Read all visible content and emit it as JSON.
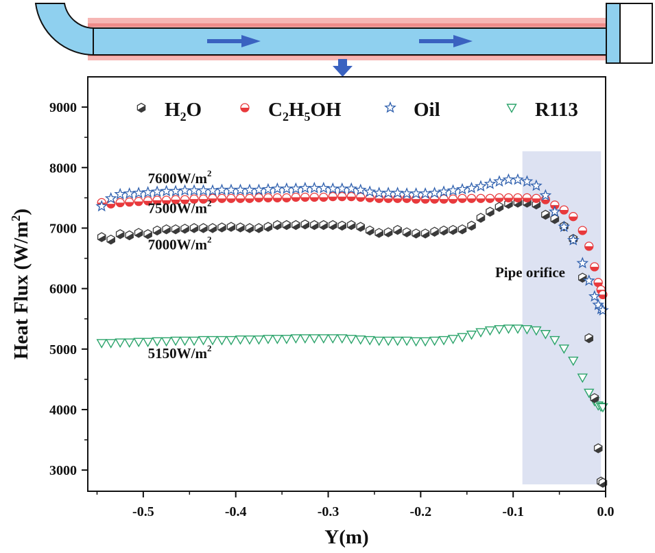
{
  "chart_data": {
    "type": "scatter",
    "title": "",
    "xlabel": "Y(m)",
    "ylabel": {
      "main": "Heat Flux (W/m",
      "sup": "2",
      "end": ")"
    },
    "xlim": [
      -0.56,
      0.0
    ],
    "ylim": [
      2650,
      9500
    ],
    "x_ticks": [
      -0.5,
      -0.4,
      -0.3,
      -0.2,
      -0.1,
      0.0
    ],
    "x_tick_labels": [
      "-0.5",
      "-0.4",
      "-0.3",
      "-0.2",
      "-0.1",
      "0.0"
    ],
    "y_ticks": [
      3000,
      4000,
      5000,
      6000,
      7000,
      8000,
      9000
    ],
    "y_tick_labels": [
      "3000",
      "4000",
      "5000",
      "6000",
      "7000",
      "8000",
      "9000"
    ],
    "grid": false,
    "legend_position": "top",
    "legend": [
      {
        "key": "h2o",
        "parts": [
          [
            "H",
            ""
          ],
          [
            "2",
            "sub"
          ],
          [
            "O",
            ""
          ]
        ]
      },
      {
        "key": "c2h5oh",
        "parts": [
          [
            "C",
            ""
          ],
          [
            "2",
            "sub"
          ],
          [
            "H",
            ""
          ],
          [
            "5",
            "sub"
          ],
          [
            "OH",
            ""
          ]
        ]
      },
      {
        "key": "oil",
        "parts": [
          [
            "Oil",
            ""
          ]
        ]
      },
      {
        "key": "r113",
        "parts": [
          [
            "R113",
            ""
          ]
        ]
      }
    ],
    "shaded_region": {
      "x": [
        -0.09,
        -0.005
      ],
      "label": "Pipe orifice",
      "color": "#dde2f2"
    },
    "annotations": [
      {
        "key": "oil",
        "parts": [
          [
            "7600W/m",
            ""
          ],
          [
            "2",
            "sup"
          ]
        ],
        "x": -0.495,
        "y": 7740
      },
      {
        "key": "c2h5oh",
        "parts": [
          [
            "7500W/m",
            ""
          ],
          [
            "2",
            "sup"
          ]
        ],
        "x": -0.495,
        "y": 7250
      },
      {
        "key": "h2o",
        "parts": [
          [
            "7000W/m",
            ""
          ],
          [
            "2",
            "sup"
          ]
        ],
        "x": -0.495,
        "y": 6650
      },
      {
        "key": "r113",
        "parts": [
          [
            "5150W/m",
            ""
          ],
          [
            "2",
            "sup"
          ]
        ],
        "x": -0.495,
        "y": 4850
      }
    ],
    "series": [
      {
        "key": "h2o",
        "name": "H2O",
        "marker": "hexagon",
        "color": "#3a3a3a",
        "x": [
          -0.545,
          -0.535,
          -0.525,
          -0.515,
          -0.505,
          -0.495,
          -0.485,
          -0.475,
          -0.465,
          -0.455,
          -0.445,
          -0.435,
          -0.425,
          -0.415,
          -0.405,
          -0.395,
          -0.385,
          -0.375,
          -0.365,
          -0.355,
          -0.345,
          -0.335,
          -0.325,
          -0.315,
          -0.305,
          -0.295,
          -0.285,
          -0.275,
          -0.265,
          -0.255,
          -0.245,
          -0.235,
          -0.225,
          -0.215,
          -0.205,
          -0.195,
          -0.185,
          -0.175,
          -0.165,
          -0.155,
          -0.145,
          -0.135,
          -0.125,
          -0.115,
          -0.105,
          -0.095,
          -0.085,
          -0.075,
          -0.065,
          -0.055,
          -0.045,
          -0.035,
          -0.025,
          -0.018,
          -0.012,
          -0.008,
          -0.005,
          -0.003
        ],
        "y": [
          6850,
          6810,
          6900,
          6880,
          6920,
          6900,
          6960,
          6980,
          6980,
          6990,
          7000,
          7000,
          7000,
          7010,
          7020,
          7010,
          7000,
          7000,
          7020,
          7050,
          7050,
          7050,
          7060,
          7050,
          7050,
          7050,
          7040,
          7050,
          7020,
          6960,
          6920,
          6930,
          6970,
          6930,
          6910,
          6910,
          6940,
          6960,
          6970,
          6980,
          7040,
          7170,
          7270,
          7350,
          7400,
          7420,
          7420,
          7390,
          7220,
          7150,
          7030,
          6820,
          6180,
          5180,
          4190,
          3360,
          2810,
          2790
        ]
      },
      {
        "key": "c2h5oh",
        "name": "C2H5OH",
        "marker": "half-circle",
        "color": "#e8393c",
        "x": [
          -0.545,
          -0.535,
          -0.525,
          -0.515,
          -0.505,
          -0.495,
          -0.485,
          -0.475,
          -0.465,
          -0.455,
          -0.445,
          -0.435,
          -0.425,
          -0.415,
          -0.405,
          -0.395,
          -0.385,
          -0.375,
          -0.365,
          -0.355,
          -0.345,
          -0.335,
          -0.325,
          -0.315,
          -0.305,
          -0.295,
          -0.285,
          -0.275,
          -0.265,
          -0.255,
          -0.245,
          -0.235,
          -0.225,
          -0.215,
          -0.205,
          -0.195,
          -0.185,
          -0.175,
          -0.165,
          -0.155,
          -0.145,
          -0.135,
          -0.125,
          -0.115,
          -0.105,
          -0.095,
          -0.085,
          -0.075,
          -0.065,
          -0.055,
          -0.045,
          -0.035,
          -0.025,
          -0.018,
          -0.012,
          -0.008,
          -0.005,
          -0.003
        ],
        "y": [
          7420,
          7400,
          7420,
          7430,
          7440,
          7450,
          7460,
          7460,
          7470,
          7470,
          7480,
          7480,
          7490,
          7490,
          7490,
          7490,
          7490,
          7500,
          7500,
          7500,
          7500,
          7510,
          7510,
          7510,
          7510,
          7520,
          7520,
          7520,
          7510,
          7500,
          7490,
          7490,
          7490,
          7490,
          7480,
          7480,
          7480,
          7480,
          7480,
          7490,
          7490,
          7490,
          7490,
          7500,
          7500,
          7500,
          7500,
          7490,
          7470,
          7380,
          7300,
          7190,
          6960,
          6700,
          6360,
          6100,
          5980,
          5900
        ]
      },
      {
        "key": "oil",
        "name": "Oil",
        "marker": "star",
        "color": "#2e5fad",
        "x": [
          -0.545,
          -0.535,
          -0.525,
          -0.515,
          -0.505,
          -0.495,
          -0.485,
          -0.475,
          -0.465,
          -0.455,
          -0.445,
          -0.435,
          -0.425,
          -0.415,
          -0.405,
          -0.395,
          -0.385,
          -0.375,
          -0.365,
          -0.355,
          -0.345,
          -0.335,
          -0.325,
          -0.315,
          -0.305,
          -0.295,
          -0.285,
          -0.275,
          -0.265,
          -0.255,
          -0.245,
          -0.235,
          -0.225,
          -0.215,
          -0.205,
          -0.195,
          -0.185,
          -0.175,
          -0.165,
          -0.155,
          -0.145,
          -0.135,
          -0.125,
          -0.115,
          -0.105,
          -0.095,
          -0.085,
          -0.075,
          -0.065,
          -0.055,
          -0.045,
          -0.035,
          -0.025,
          -0.018,
          -0.012,
          -0.008,
          -0.005,
          -0.003
        ],
        "y": [
          7360,
          7490,
          7560,
          7570,
          7580,
          7590,
          7600,
          7610,
          7610,
          7620,
          7620,
          7620,
          7620,
          7630,
          7630,
          7630,
          7630,
          7630,
          7640,
          7650,
          7650,
          7650,
          7660,
          7660,
          7660,
          7650,
          7650,
          7650,
          7630,
          7600,
          7580,
          7580,
          7580,
          7570,
          7570,
          7570,
          7580,
          7600,
          7620,
          7640,
          7660,
          7690,
          7730,
          7770,
          7800,
          7800,
          7770,
          7700,
          7540,
          7270,
          7020,
          6800,
          6420,
          6130,
          5870,
          5730,
          5660,
          5640
        ]
      },
      {
        "key": "r113",
        "name": "R113",
        "marker": "triangle-down",
        "color": "#2aa36a",
        "x": [
          -0.545,
          -0.535,
          -0.525,
          -0.515,
          -0.505,
          -0.495,
          -0.485,
          -0.475,
          -0.465,
          -0.455,
          -0.445,
          -0.435,
          -0.425,
          -0.415,
          -0.405,
          -0.395,
          -0.385,
          -0.375,
          -0.365,
          -0.355,
          -0.345,
          -0.335,
          -0.325,
          -0.315,
          -0.305,
          -0.295,
          -0.285,
          -0.275,
          -0.265,
          -0.255,
          -0.245,
          -0.235,
          -0.225,
          -0.215,
          -0.205,
          -0.195,
          -0.185,
          -0.175,
          -0.165,
          -0.155,
          -0.145,
          -0.135,
          -0.125,
          -0.115,
          -0.105,
          -0.095,
          -0.085,
          -0.075,
          -0.065,
          -0.055,
          -0.045,
          -0.035,
          -0.025,
          -0.018,
          -0.012,
          -0.008,
          -0.005,
          -0.003
        ],
        "y": [
          5100,
          5100,
          5110,
          5110,
          5120,
          5120,
          5130,
          5130,
          5140,
          5140,
          5140,
          5150,
          5150,
          5150,
          5150,
          5160,
          5160,
          5160,
          5170,
          5170,
          5170,
          5180,
          5180,
          5180,
          5180,
          5180,
          5180,
          5170,
          5160,
          5150,
          5140,
          5140,
          5140,
          5140,
          5130,
          5130,
          5140,
          5150,
          5170,
          5200,
          5240,
          5280,
          5310,
          5330,
          5340,
          5340,
          5330,
          5310,
          5250,
          5150,
          5010,
          4810,
          4530,
          4280,
          4140,
          4070,
          4050,
          4040
        ]
      }
    ]
  }
}
